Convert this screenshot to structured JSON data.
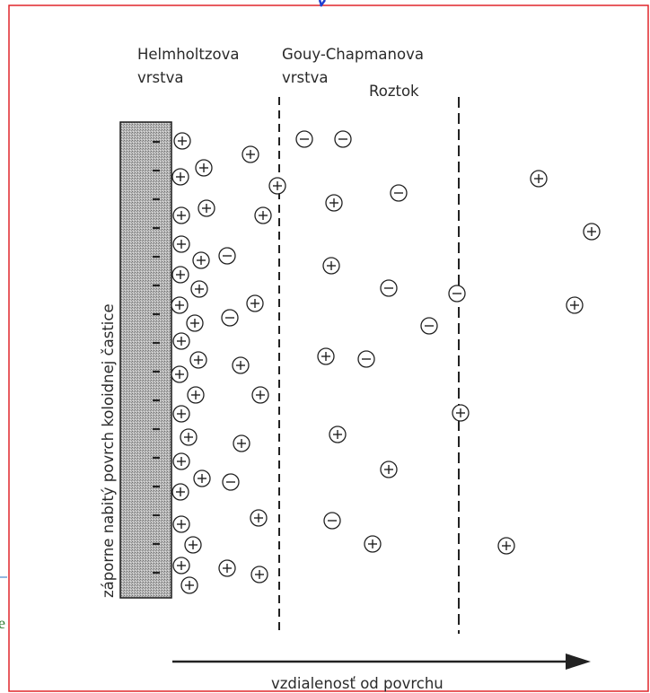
{
  "labels": {
    "helmholtz": [
      "Helmholtzova",
      "vrstva"
    ],
    "gouy": [
      "Gouy-Chapmanova",
      "vrstva"
    ],
    "solution": "Roztok",
    "surface": "záporne nabitý povrch koloidnej častice",
    "axis": "vzdialenosť od povrchu",
    "edge_fragment": "e"
  },
  "colors": {
    "frame": "#e0262b",
    "hatch": "#8c8c8c",
    "edge_text": "#2e7d32",
    "title_glyph": "#1f3fd1"
  },
  "surface_charges": {
    "count": 16,
    "sign": "-"
  },
  "ions": [
    {
      "s": "+"
    },
    {
      "s": "+"
    },
    {
      "s": "+"
    },
    {
      "s": "+"
    },
    {
      "s": "+"
    },
    {
      "s": "+"
    },
    {
      "s": "+"
    },
    {
      "s": "+"
    },
    {
      "s": "+"
    },
    {
      "s": "+"
    },
    {
      "s": "+"
    },
    {
      "s": "+"
    },
    {
      "s": "+"
    },
    {
      "s": "+"
    },
    {
      "s": "+"
    },
    {
      "s": "+"
    },
    {
      "s": "+"
    },
    {
      "s": "+"
    },
    {
      "s": "+"
    },
    {
      "s": "+"
    },
    {
      "s": "+"
    },
    {
      "s": "+"
    },
    {
      "s": "+"
    },
    {
      "s": "+"
    },
    {
      "s": "+"
    },
    {
      "s": "+"
    },
    {
      "s": "+"
    },
    {
      "s": "+"
    },
    {
      "s": "+"
    },
    {
      "s": "+"
    },
    {
      "s": "+"
    },
    {
      "s": "+"
    },
    {
      "s": "+"
    },
    {
      "s": "-"
    },
    {
      "s": "-"
    },
    {
      "s": "-"
    },
    {
      "s": "-"
    },
    {
      "s": "-"
    },
    {
      "s": "+"
    },
    {
      "s": "+"
    },
    {
      "s": "+"
    },
    {
      "s": "+"
    },
    {
      "s": "+"
    },
    {
      "s": "+"
    },
    {
      "s": "+"
    },
    {
      "s": "-"
    },
    {
      "s": "-"
    },
    {
      "s": "-"
    },
    {
      "s": "-"
    },
    {
      "s": "-"
    },
    {
      "s": "-"
    },
    {
      "s": "+"
    },
    {
      "s": "+"
    },
    {
      "s": "+"
    },
    {
      "s": "+"
    },
    {
      "s": "+"
    },
    {
      "s": "+"
    },
    {
      "s": "+"
    },
    {
      "s": "-"
    },
    {
      "s": "-"
    },
    {
      "s": "-"
    },
    {
      "s": "-"
    }
  ]
}
